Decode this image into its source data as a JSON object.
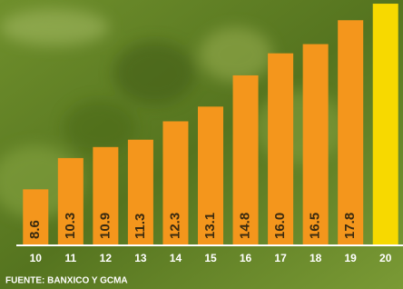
{
  "chart_data": {
    "type": "bar",
    "categories": [
      "10",
      "11",
      "12",
      "13",
      "14",
      "15",
      "16",
      "17",
      "18",
      "19",
      "20"
    ],
    "values": [
      8.6,
      10.3,
      10.9,
      11.3,
      12.3,
      13.1,
      14.8,
      16.0,
      16.5,
      17.8,
      18.7
    ],
    "value_labels": [
      "8.6",
      "10.3",
      "10.9",
      "11.3",
      "12.3",
      "13.1",
      "14.8",
      "16.0",
      "16.5",
      "17.8",
      null
    ],
    "colors": [
      "#f4961c",
      "#f4961c",
      "#f4961c",
      "#f4961c",
      "#f4961c",
      "#f4961c",
      "#f4961c",
      "#f4961c",
      "#f4961c",
      "#f4961c",
      "#f7d900"
    ],
    "ylim": [
      5.6,
      18.9
    ],
    "source": "FUENTE: BANXICO Y GCMA"
  }
}
